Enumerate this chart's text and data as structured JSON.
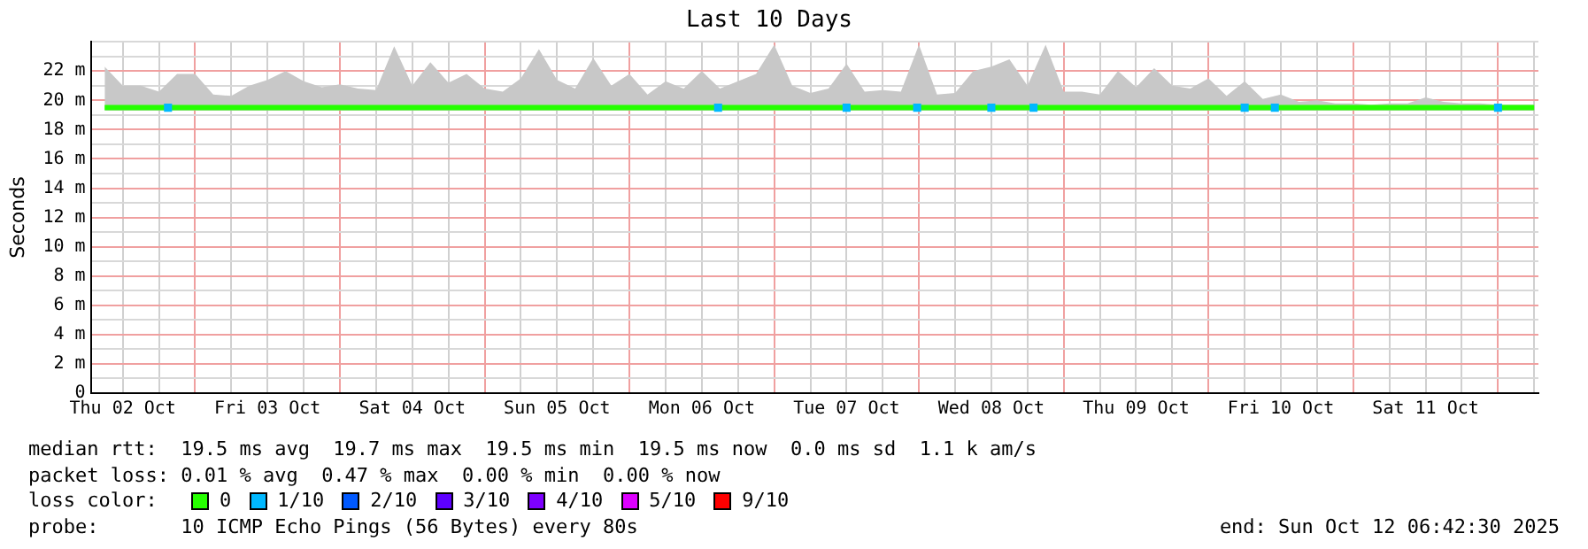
{
  "chart_data": {
    "type": "line",
    "title": "Last 10 Days",
    "ylabel": "Seconds",
    "x": [
      "2025-10-02T09:00",
      "2025-10-02T12:00",
      "2025-10-02T15:00",
      "2025-10-02T18:00",
      "2025-10-02T21:00",
      "2025-10-03T00:00",
      "2025-10-03T03:00",
      "2025-10-03T06:00",
      "2025-10-03T09:00",
      "2025-10-03T12:00",
      "2025-10-03T15:00",
      "2025-10-03T18:00",
      "2025-10-03T21:00",
      "2025-10-04T00:00",
      "2025-10-04T03:00",
      "2025-10-04T06:00",
      "2025-10-04T09:00",
      "2025-10-04T12:00",
      "2025-10-04T15:00",
      "2025-10-04T18:00",
      "2025-10-04T21:00",
      "2025-10-05T00:00",
      "2025-10-05T03:00",
      "2025-10-05T06:00",
      "2025-10-05T09:00",
      "2025-10-05T12:00",
      "2025-10-05T15:00",
      "2025-10-05T18:00",
      "2025-10-05T21:00",
      "2025-10-06T00:00",
      "2025-10-06T03:00",
      "2025-10-06T06:00",
      "2025-10-06T09:00",
      "2025-10-06T12:00",
      "2025-10-06T15:00",
      "2025-10-06T18:00",
      "2025-10-06T21:00",
      "2025-10-07T00:00",
      "2025-10-07T03:00",
      "2025-10-07T06:00",
      "2025-10-07T09:00",
      "2025-10-07T12:00",
      "2025-10-07T15:00",
      "2025-10-07T18:00",
      "2025-10-07T21:00",
      "2025-10-08T00:00",
      "2025-10-08T03:00",
      "2025-10-08T06:00",
      "2025-10-08T09:00",
      "2025-10-08T12:00",
      "2025-10-08T15:00",
      "2025-10-08T18:00",
      "2025-10-08T21:00",
      "2025-10-09T00:00",
      "2025-10-09T03:00",
      "2025-10-09T06:00",
      "2025-10-09T09:00",
      "2025-10-09T12:00",
      "2025-10-09T15:00",
      "2025-10-09T18:00",
      "2025-10-09T21:00",
      "2025-10-10T00:00",
      "2025-10-10T03:00",
      "2025-10-10T06:00",
      "2025-10-10T09:00",
      "2025-10-10T12:00",
      "2025-10-10T15:00",
      "2025-10-10T18:00",
      "2025-10-10T21:00",
      "2025-10-11T00:00",
      "2025-10-11T03:00",
      "2025-10-11T06:00",
      "2025-10-11T09:00",
      "2025-10-11T12:00",
      "2025-10-11T15:00",
      "2025-10-11T18:00",
      "2025-10-11T21:00",
      "2025-10-12T00:00",
      "2025-10-12T03:00",
      "2025-10-12T06:00"
    ],
    "xlim": [
      "2025-10-02T06:42",
      "2025-10-12T06:42"
    ],
    "xticks": [
      {
        "value": "2025-10-02T12:00",
        "label": "Thu 02 Oct"
      },
      {
        "value": "2025-10-02T18:00",
        "label": null
      },
      {
        "value": "2025-10-03T00:00",
        "label": null
      },
      {
        "value": "2025-10-03T06:00",
        "label": null
      },
      {
        "value": "2025-10-03T12:00",
        "label": "Fri 03 Oct"
      },
      {
        "value": "2025-10-03T18:00",
        "label": null
      },
      {
        "value": "2025-10-04T00:00",
        "label": null
      },
      {
        "value": "2025-10-04T06:00",
        "label": null
      },
      {
        "value": "2025-10-04T12:00",
        "label": "Sat 04 Oct"
      },
      {
        "value": "2025-10-04T18:00",
        "label": null
      },
      {
        "value": "2025-10-05T00:00",
        "label": null
      },
      {
        "value": "2025-10-05T06:00",
        "label": null
      },
      {
        "value": "2025-10-05T12:00",
        "label": "Sun 05 Oct"
      },
      {
        "value": "2025-10-05T18:00",
        "label": null
      },
      {
        "value": "2025-10-06T00:00",
        "label": null
      },
      {
        "value": "2025-10-06T06:00",
        "label": null
      },
      {
        "value": "2025-10-06T12:00",
        "label": "Mon 06 Oct"
      },
      {
        "value": "2025-10-06T18:00",
        "label": null
      },
      {
        "value": "2025-10-07T00:00",
        "label": null
      },
      {
        "value": "2025-10-07T06:00",
        "label": null
      },
      {
        "value": "2025-10-07T12:00",
        "label": "Tue 07 Oct"
      },
      {
        "value": "2025-10-07T18:00",
        "label": null
      },
      {
        "value": "2025-10-08T00:00",
        "label": null
      },
      {
        "value": "2025-10-08T06:00",
        "label": null
      },
      {
        "value": "2025-10-08T12:00",
        "label": "Wed 08 Oct"
      },
      {
        "value": "2025-10-08T18:00",
        "label": null
      },
      {
        "value": "2025-10-09T00:00",
        "label": null
      },
      {
        "value": "2025-10-09T06:00",
        "label": null
      },
      {
        "value": "2025-10-09T12:00",
        "label": "Thu 09 Oct"
      },
      {
        "value": "2025-10-09T18:00",
        "label": null
      },
      {
        "value": "2025-10-10T00:00",
        "label": null
      },
      {
        "value": "2025-10-10T06:00",
        "label": null
      },
      {
        "value": "2025-10-10T12:00",
        "label": "Fri 10 Oct"
      },
      {
        "value": "2025-10-10T18:00",
        "label": null
      },
      {
        "value": "2025-10-11T00:00",
        "label": null
      },
      {
        "value": "2025-10-11T06:00",
        "label": null
      },
      {
        "value": "2025-10-11T12:00",
        "label": "Sat 11 Oct"
      },
      {
        "value": "2025-10-11T18:00",
        "label": null
      },
      {
        "value": "2025-10-12T00:00",
        "label": null
      },
      {
        "value": "2025-10-12T06:00",
        "label": null
      }
    ],
    "ylim": [
      0,
      24
    ],
    "yticks": [
      0,
      {
        "value": 1,
        "label": null
      },
      {
        "value": 2,
        "label": "2 m"
      },
      {
        "value": 3,
        "label": null
      },
      {
        "value": 4,
        "label": "4 m"
      },
      {
        "value": 5,
        "label": null
      },
      {
        "value": 6,
        "label": "6 m"
      },
      {
        "value": 7,
        "label": null
      },
      {
        "value": 8,
        "label": "8 m"
      },
      {
        "value": 9,
        "label": null
      },
      {
        "value": 10,
        "label": "10 m"
      },
      {
        "value": 11,
        "label": null
      },
      {
        "value": 12,
        "label": "12 m"
      },
      {
        "value": 13,
        "label": null
      },
      {
        "value": 14,
        "label": "14 m"
      },
      {
        "value": 15,
        "label": null
      },
      {
        "value": 16,
        "label": "16 m"
      },
      {
        "value": 17,
        "label": null
      },
      {
        "value": 18,
        "label": "18 m"
      },
      {
        "value": 19,
        "label": null
      },
      {
        "value": 20,
        "label": "20 m"
      },
      {
        "value": 21,
        "label": null
      },
      {
        "value": 22,
        "label": "22 m"
      },
      {
        "value": 23,
        "label": null
      },
      {
        "value": 24,
        "label": null
      }
    ],
    "grid": true,
    "legend": "bottom",
    "legend_title": "loss color:",
    "line_style": "solid",
    "marker": "none",
    "series": [
      {
        "name": "0",
        "color": "#26ff00",
        "values": [
          19.5,
          19.5,
          19.5,
          19.5,
          19.5,
          19.5,
          19.5,
          19.5,
          19.5,
          19.5,
          19.5,
          19.5,
          19.5,
          19.5,
          19.5,
          19.5,
          19.5,
          19.5,
          19.5,
          19.5,
          19.5,
          19.5,
          19.5,
          19.5,
          19.5,
          19.5,
          19.5,
          19.5,
          19.5,
          19.5,
          19.5,
          19.5,
          19.5,
          19.5,
          19.5,
          19.5,
          19.5,
          19.5,
          19.5,
          19.5,
          19.5,
          19.5,
          19.5,
          19.5,
          19.5,
          19.5,
          19.5,
          19.5,
          19.5,
          19.5,
          19.5,
          19.5,
          19.5,
          19.5,
          19.5,
          19.5,
          19.5,
          19.5,
          19.5,
          19.5,
          19.5,
          19.5,
          19.5,
          19.5,
          19.5,
          19.5,
          19.5,
          19.5,
          19.5,
          19.5,
          19.5,
          19.5,
          19.5,
          19.5,
          19.5,
          19.5,
          19.5,
          19.5,
          19.5,
          19.5
        ],
        "lower": [
          19.3,
          19.3,
          19.3,
          19.3,
          19.3,
          19.3,
          19.3,
          19.3,
          19.3,
          19.3,
          19.3,
          19.3,
          19.3,
          19.3,
          19.3,
          19.3,
          19.3,
          19.3,
          19.3,
          19.3,
          19.3,
          19.3,
          19.3,
          19.3,
          19.3,
          19.3,
          19.3,
          19.3,
          19.3,
          19.3,
          19.3,
          19.3,
          19.3,
          19.3,
          19.3,
          19.3,
          19.3,
          19.3,
          19.3,
          19.3,
          19.3,
          19.3,
          19.3,
          19.3,
          19.3,
          19.3,
          19.3,
          19.3,
          19.3,
          19.3,
          19.3,
          19.3,
          19.3,
          19.3,
          19.3,
          19.3,
          19.3,
          19.3,
          19.3,
          19.3,
          19.3,
          19.3,
          19.3,
          19.3,
          19.3,
          19.3,
          19.3,
          19.3,
          19.3,
          19.3,
          19.3,
          19.3,
          19.3,
          19.3,
          19.3,
          19.3,
          19.3,
          19.3,
          19.3,
          19.3
        ],
        "upper": [
          22.3,
          21,
          21,
          20.6,
          21.8,
          21.8,
          20.4,
          20.3,
          21,
          21.4,
          22,
          21.3,
          20.9,
          21.1,
          20.8,
          20.7,
          23.7,
          21,
          22.6,
          21.2,
          21.8,
          20.8,
          20.6,
          21.5,
          23.5,
          21.4,
          20.8,
          22.9,
          21,
          21.8,
          20.4,
          21.3,
          20.8,
          22,
          20.8,
          21.3,
          21.8,
          23.8,
          21,
          20.5,
          20.8,
          22.5,
          20.6,
          20.7,
          20.6,
          23.8,
          20.4,
          20.5,
          22,
          22.3,
          22.8,
          21,
          23.8,
          20.6,
          20.6,
          20.4,
          22,
          20.9,
          22.2,
          21,
          20.8,
          21.5,
          20.3,
          21.3,
          20.1,
          20.4,
          19.9,
          20,
          19.8,
          19.8,
          19.7,
          19.8,
          19.8,
          20.2,
          19.9,
          19.8,
          19.8,
          19.7,
          19.7,
          19.7
        ]
      },
      {
        "name": "1/10",
        "type": "scatter",
        "marker": "square",
        "color": "#00b8ff",
        "x": [
          "2025-10-02T19:30",
          "2025-10-06T14:42",
          "2025-10-07T12:00",
          "2025-10-07T23:42",
          "2025-10-08T12:00",
          "2025-10-08T19:00",
          "2025-10-10T06:00",
          "2025-10-10T11:00",
          "2025-10-12T00:00"
        ],
        "values": [
          19.5,
          19.5,
          19.5,
          19.5,
          19.5,
          19.5,
          19.5,
          19.5,
          19.5
        ]
      },
      {
        "name": "2/10",
        "type": "scatter",
        "color": "#0059ff",
        "values": [
          null,
          null,
          null,
          null,
          null,
          null,
          null,
          null,
          null,
          null,
          null,
          null,
          null,
          null,
          null,
          null,
          null,
          null,
          null,
          null,
          null,
          null,
          null,
          null,
          null,
          null,
          null,
          null,
          null,
          null,
          null,
          null,
          null,
          null,
          null,
          null,
          null,
          null,
          null,
          null,
          null,
          null,
          null,
          null,
          null,
          null,
          null,
          null,
          null,
          null,
          null,
          null,
          null,
          null,
          null,
          null,
          null,
          null,
          null,
          null,
          null,
          null,
          null,
          null,
          null,
          null,
          null,
          null,
          null,
          null,
          null,
          null,
          null,
          null,
          null,
          null,
          null,
          null,
          null,
          null
        ]
      },
      {
        "name": "3/10",
        "type": "scatter",
        "color": "#5e00ff",
        "values": [
          null,
          null,
          null,
          null,
          null,
          null,
          null,
          null,
          null,
          null,
          null,
          null,
          null,
          null,
          null,
          null,
          null,
          null,
          null,
          null,
          null,
          null,
          null,
          null,
          null,
          null,
          null,
          null,
          null,
          null,
          null,
          null,
          null,
          null,
          null,
          null,
          null,
          null,
          null,
          null,
          null,
          null,
          null,
          null,
          null,
          null,
          null,
          null,
          null,
          null,
          null,
          null,
          null,
          null,
          null,
          null,
          null,
          null,
          null,
          null,
          null,
          null,
          null,
          null,
          null,
          null,
          null,
          null,
          null,
          null,
          null,
          null,
          null,
          null,
          null,
          null,
          null,
          null,
          null,
          null
        ]
      },
      {
        "name": "4/10",
        "type": "scatter",
        "color": "#7e00ff",
        "values": [
          null,
          null,
          null,
          null,
          null,
          null,
          null,
          null,
          null,
          null,
          null,
          null,
          null,
          null,
          null,
          null,
          null,
          null,
          null,
          null,
          null,
          null,
          null,
          null,
          null,
          null,
          null,
          null,
          null,
          null,
          null,
          null,
          null,
          null,
          null,
          null,
          null,
          null,
          null,
          null,
          null,
          null,
          null,
          null,
          null,
          null,
          null,
          null,
          null,
          null,
          null,
          null,
          null,
          null,
          null,
          null,
          null,
          null,
          null,
          null,
          null,
          null,
          null,
          null,
          null,
          null,
          null,
          null,
          null,
          null,
          null,
          null,
          null,
          null,
          null,
          null,
          null,
          null,
          null,
          null
        ]
      },
      {
        "name": "5/10",
        "type": "scatter",
        "color": "#dd00ff",
        "values": [
          null,
          null,
          null,
          null,
          null,
          null,
          null,
          null,
          null,
          null,
          null,
          null,
          null,
          null,
          null,
          null,
          null,
          null,
          null,
          null,
          null,
          null,
          null,
          null,
          null,
          null,
          null,
          null,
          null,
          null,
          null,
          null,
          null,
          null,
          null,
          null,
          null,
          null,
          null,
          null,
          null,
          null,
          null,
          null,
          null,
          null,
          null,
          null,
          null,
          null,
          null,
          null,
          null,
          null,
          null,
          null,
          null,
          null,
          null,
          null,
          null,
          null,
          null,
          null,
          null,
          null,
          null,
          null,
          null,
          null,
          null,
          null,
          null,
          null,
          null,
          null,
          null,
          null,
          null,
          null
        ]
      },
      {
        "name": "9/10",
        "type": "scatter",
        "color": "#ff0000",
        "values": [
          null,
          null,
          null,
          null,
          null,
          null,
          null,
          null,
          null,
          null,
          null,
          null,
          null,
          null,
          null,
          null,
          null,
          null,
          null,
          null,
          null,
          null,
          null,
          null,
          null,
          null,
          null,
          null,
          null,
          null,
          null,
          null,
          null,
          null,
          null,
          null,
          null,
          null,
          null,
          null,
          null,
          null,
          null,
          null,
          null,
          null,
          null,
          null,
          null,
          null,
          null,
          null,
          null,
          null,
          null,
          null,
          null,
          null,
          null,
          null,
          null,
          null,
          null,
          null,
          null,
          null,
          null,
          null,
          null,
          null,
          null,
          null,
          null,
          null,
          null,
          null,
          null,
          null,
          null,
          null
        ]
      }
    ],
    "annotations": [
      "median rtt:  19.5 ms avg  19.7 ms max  19.5 ms min  19.5 ms now  0.0 ms sd  1.1 k am/s",
      "packet loss: 0.01 % avg  0.47 % max  0.00 % min  0.00 % now",
      "probe:       10 ICMP Echo Pings (56 Bytes) every 80s",
      "end: Sun Oct 12 06:42:30 2025"
    ]
  }
}
